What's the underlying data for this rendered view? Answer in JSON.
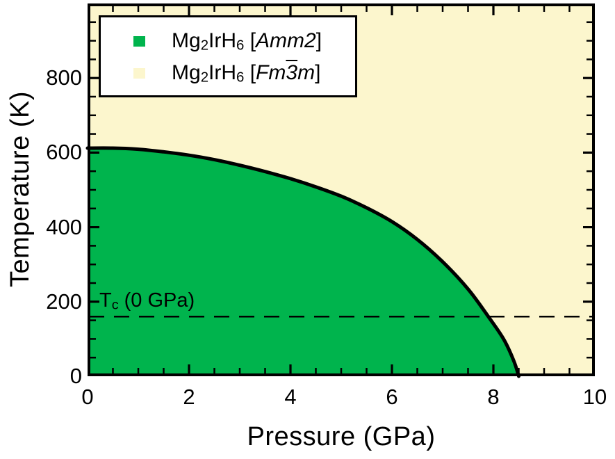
{
  "figure": {
    "background": "#ffffff"
  },
  "colors": {
    "amm2_green": "#00b44d",
    "fm3m_yellow": "#fcf6cd",
    "boundary_black": "#000000",
    "legend_background": "#ffffff"
  },
  "axes": {
    "x": {
      "label": "Pressure (GPa)",
      "min": 0,
      "max": 10,
      "major_ticks": [
        0,
        2,
        4,
        6,
        8,
        10
      ],
      "tick_labels": [
        "0",
        "2",
        "4",
        "6",
        "8",
        "10"
      ],
      "minor_step": 0.5
    },
    "y": {
      "label": "Temperature (K)",
      "min": 0,
      "max": 1000,
      "major_ticks": [
        0,
        200,
        400,
        600,
        800,
        1000
      ],
      "tick_labels": [
        "0",
        "200",
        "400",
        "600",
        "800"
      ],
      "minor_step": 50
    }
  },
  "legend": {
    "entries": [
      {
        "id": "amm2",
        "swatch_color": "#00b44d",
        "text": "Mg2IrH6 [Amm2]",
        "parts": [
          {
            "t": "Mg"
          },
          {
            "t": "2",
            "sub": true
          },
          {
            "t": "IrH"
          },
          {
            "t": "6",
            "sub": true
          },
          {
            "t": " ["
          },
          {
            "t": "Amm2",
            "i": true
          },
          {
            "t": "]"
          }
        ]
      },
      {
        "id": "fm3m",
        "swatch_color": "#fcf6cd",
        "text": "Mg2IrH6 [Fm3̅m]",
        "parts": [
          {
            "t": "Mg"
          },
          {
            "t": "2",
            "sub": true
          },
          {
            "t": "IrH"
          },
          {
            "t": "6",
            "sub": true
          },
          {
            "t": " ["
          },
          {
            "t": "Fm",
            "i": true
          },
          {
            "t": "3",
            "i": true,
            "over": true
          },
          {
            "t": "m",
            "i": true
          },
          {
            "t": "]"
          }
        ]
      }
    ]
  },
  "annotation": {
    "text": "Tc (0 GPa)",
    "parts": [
      {
        "t": "T"
      },
      {
        "t": "c",
        "sub": true
      },
      {
        "t": " (0 GPa)"
      }
    ]
  },
  "chart_data": {
    "type": "area",
    "title": "",
    "xlabel": "Pressure (GPa)",
    "ylabel": "Temperature (K)",
    "xlim": [
      0,
      10
    ],
    "ylim": [
      0,
      1000
    ],
    "grid": false,
    "legend_position": "top-left",
    "x_major_ticks": [
      0,
      2,
      4,
      6,
      8,
      10
    ],
    "x_minor_step": 0.5,
    "y_major_ticks": [
      0,
      200,
      400,
      600,
      800,
      1000
    ],
    "y_minor_step": 50,
    "regions": [
      {
        "label": "Mg2IrH6 [Amm2]",
        "color": "#00b44d",
        "location": "below phase boundary"
      },
      {
        "label": "Mg2IrH6 [Fm-3m]",
        "color": "#fcf6cd",
        "location": "above phase boundary"
      }
    ],
    "series": [
      {
        "name": "Amm2 / Fm-3m phase boundary",
        "type": "line",
        "color": "#000000",
        "stroke_width": 5,
        "x": [
          0,
          0.5,
          1,
          1.5,
          2,
          2.5,
          3,
          3.5,
          4,
          4.5,
          5,
          5.5,
          6,
          6.5,
          7,
          7.5,
          7.9,
          8.2,
          8.4,
          8.5
        ],
        "y": [
          612,
          612,
          609,
          602,
          593,
          581,
          566,
          549,
          530,
          508,
          483,
          452,
          415,
          367,
          307,
          234,
          160,
          100,
          42,
          0
        ]
      }
    ],
    "reference_line": {
      "label": "Tc (0 GPa)",
      "axis": "y",
      "value": 160,
      "style": "dashed",
      "color": "#000000"
    }
  }
}
